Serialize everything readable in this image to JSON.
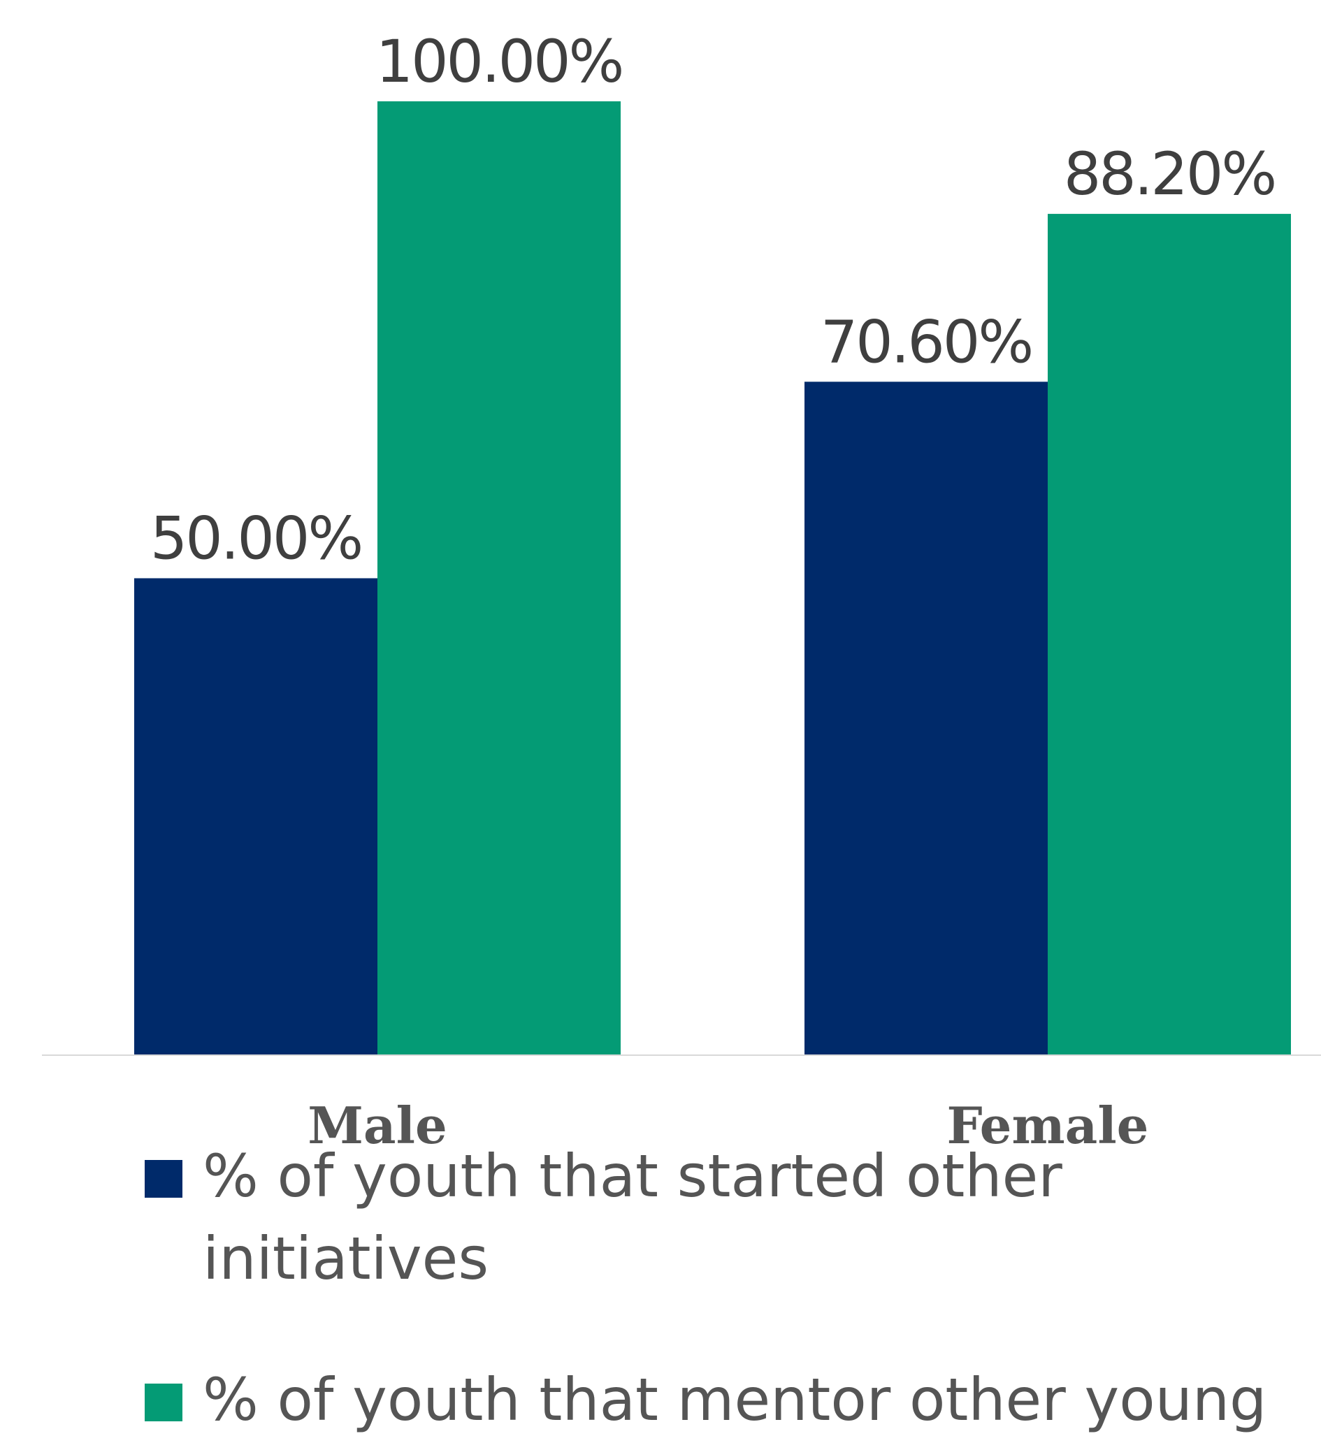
{
  "chart_data": {
    "type": "bar",
    "categories": [
      "Male",
      "Female"
    ],
    "series": [
      {
        "name": "% of youth that started other initiatives",
        "name_lines": [
          "% of youth that started other",
          "initiatives"
        ],
        "values": [
          50.0,
          70.6
        ],
        "labels": [
          "50.00%",
          "70.60%"
        ],
        "color": "#002a6a"
      },
      {
        "name": "% of youth that mentor other young",
        "name_lines": [
          "% of youth that mentor other young"
        ],
        "values": [
          100.0,
          88.2
        ],
        "labels": [
          "100.00%",
          "88.20%"
        ],
        "color": "#049b75"
      }
    ],
    "ylim": [
      0,
      100
    ],
    "grid": false,
    "legend_position": "bottom",
    "title": "",
    "xlabel": "",
    "ylabel": ""
  }
}
